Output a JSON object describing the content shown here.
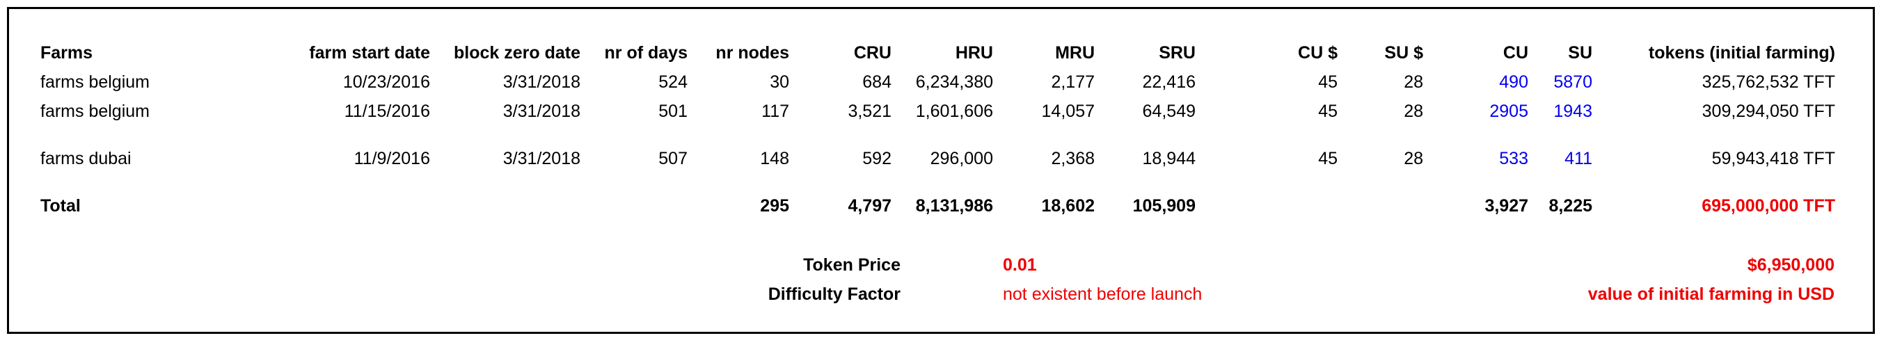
{
  "headers": {
    "farms": "Farms",
    "farm_start_date": "farm start date",
    "block_zero_date": "block zero date",
    "nr_of_days": "nr of days",
    "nr_nodes": "nr nodes",
    "cru": "CRU",
    "hru": "HRU",
    "mru": "MRU",
    "sru": "SRU",
    "cu_usd": "CU $",
    "su_usd": "SU $",
    "cu": "CU",
    "su": "SU",
    "tokens": "tokens (initial farming)"
  },
  "rows": [
    {
      "farms": "farms belgium",
      "farm_start_date": "10/23/2016",
      "block_zero_date": "3/31/2018",
      "nr_of_days": "524",
      "nr_nodes": "30",
      "cru": "684",
      "hru": "6,234,380",
      "mru": "2,177",
      "sru": "22,416",
      "cu_usd": "45",
      "su_usd": "28",
      "cu": "490",
      "su": "5870",
      "tokens": "325,762,532 TFT"
    },
    {
      "farms": "farms belgium",
      "farm_start_date": "11/15/2016",
      "block_zero_date": "3/31/2018",
      "nr_of_days": "501",
      "nr_nodes": "117",
      "cru": "3,521",
      "hru": "1,601,606",
      "mru": "14,057",
      "sru": "64,549",
      "cu_usd": "45",
      "su_usd": "28",
      "cu": "2905",
      "su": "1943",
      "tokens": "309,294,050 TFT"
    },
    {
      "farms": "farms dubai",
      "farm_start_date": "11/9/2016",
      "block_zero_date": "3/31/2018",
      "nr_of_days": "507",
      "nr_nodes": "148",
      "cru": "592",
      "hru": "296,000",
      "mru": "2,368",
      "sru": "18,944",
      "cu_usd": "45",
      "su_usd": "28",
      "cu": "533",
      "su": "411",
      "tokens": "59,943,418 TFT"
    }
  ],
  "total": {
    "label": "Total",
    "nr_nodes": "295",
    "cru": "4,797",
    "hru": "8,131,986",
    "mru": "18,602",
    "sru": "105,909",
    "cu": "3,927",
    "su": "8,225",
    "tokens": "695,000,000 TFT"
  },
  "footer": {
    "token_price_label": "Token Price",
    "token_price_value": "0.01",
    "difficulty_label": "Difficulty Factor",
    "difficulty_value": "not existent before launch",
    "usd_value": "$6,950,000",
    "usd_caption": "value of initial farming in USD"
  },
  "colors": {
    "highlight_blue": "#0000ee",
    "highlight_red": "#ee0000"
  }
}
